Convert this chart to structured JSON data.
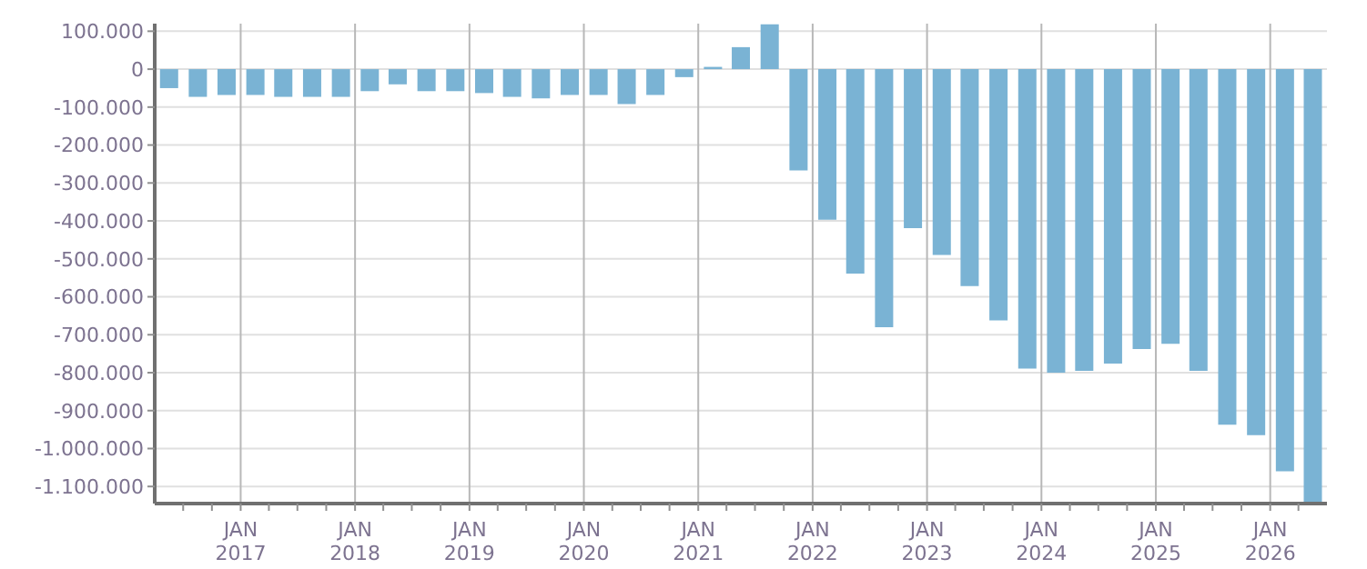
{
  "chart_data": {
    "type": "bar",
    "color": "#7ab3d4",
    "x": [
      "2016-05-15",
      "2016-08-15",
      "2016-11-15",
      "2017-02-15",
      "2017-05-15",
      "2017-08-15",
      "2017-11-15",
      "2018-02-15",
      "2018-05-15",
      "2018-08-15",
      "2018-11-15",
      "2019-02-15",
      "2019-05-15",
      "2019-08-15",
      "2019-11-15",
      "2020-02-15",
      "2020-05-15",
      "2020-08-15",
      "2020-11-15",
      "2021-02-15",
      "2021-05-15",
      "2021-08-15",
      "2021-11-15",
      "2022-02-15",
      "2022-05-15",
      "2022-08-15",
      "2022-11-15",
      "2023-02-15",
      "2023-05-15",
      "2023-08-15",
      "2023-11-15",
      "2024-02-15",
      "2024-05-15",
      "2024-08-15",
      "2024-11-15",
      "2025-02-15",
      "2025-05-15",
      "2025-08-15",
      "2025-11-15",
      "2026-02-15",
      "2026-05-15"
    ],
    "values": [
      -50000,
      -73000,
      -68000,
      -68000,
      -73000,
      -73000,
      -73000,
      -58000,
      -40000,
      -58000,
      -58000,
      -63000,
      -73000,
      -77000,
      -68000,
      -68000,
      -92000,
      -68000,
      -21000,
      6000,
      58000,
      118000,
      -267000,
      -397000,
      -539000,
      -680000,
      -419000,
      -490000,
      -572000,
      -662000,
      -789000,
      -800000,
      -795000,
      -776000,
      -738000,
      -724000,
      -795000,
      -937000,
      -965000,
      -1060000,
      -1145000
    ],
    "xlim": [
      "2016-04",
      "2026-07"
    ],
    "xticks": [
      {
        "value": "2016-07",
        "label": null
      },
      {
        "value": "2016-10",
        "label": null
      },
      {
        "value": "2017-01",
        "label": "JAN\n2017"
      },
      {
        "value": "2017-04",
        "label": null
      },
      {
        "value": "2017-07",
        "label": null
      },
      {
        "value": "2017-10",
        "label": null
      },
      {
        "value": "2018-01",
        "label": "JAN\n2018"
      },
      {
        "value": "2018-04",
        "label": null
      },
      {
        "value": "2018-07",
        "label": null
      },
      {
        "value": "2018-10",
        "label": null
      },
      {
        "value": "2019-01",
        "label": "JAN\n2019"
      },
      {
        "value": "2019-04",
        "label": null
      },
      {
        "value": "2019-07",
        "label": null
      },
      {
        "value": "2019-10",
        "label": null
      },
      {
        "value": "2020-01",
        "label": "JAN\n2020"
      },
      {
        "value": "2020-04",
        "label": null
      },
      {
        "value": "2020-07",
        "label": null
      },
      {
        "value": "2020-10",
        "label": null
      },
      {
        "value": "2021-01",
        "label": "JAN\n2021"
      },
      {
        "value": "2021-04",
        "label": null
      },
      {
        "value": "2021-07",
        "label": null
      },
      {
        "value": "2021-10",
        "label": null
      },
      {
        "value": "2022-01",
        "label": "JAN\n2022"
      },
      {
        "value": "2022-04",
        "label": null
      },
      {
        "value": "2022-07",
        "label": null
      },
      {
        "value": "2022-10",
        "label": null
      },
      {
        "value": "2023-01",
        "label": "JAN\n2023"
      },
      {
        "value": "2023-04",
        "label": null
      },
      {
        "value": "2023-07",
        "label": null
      },
      {
        "value": "2023-10",
        "label": null
      },
      {
        "value": "2024-01",
        "label": "JAN\n2024"
      },
      {
        "value": "2024-04",
        "label": null
      },
      {
        "value": "2024-07",
        "label": null
      },
      {
        "value": "2024-10",
        "label": null
      },
      {
        "value": "2025-01",
        "label": "JAN\n2025"
      },
      {
        "value": "2025-04",
        "label": null
      },
      {
        "value": "2025-07",
        "label": null
      },
      {
        "value": "2025-10",
        "label": null
      },
      {
        "value": "2026-01",
        "label": "JAN\n2026"
      },
      {
        "value": "2026-04",
        "label": null
      }
    ],
    "ylim": [
      -1145000,
      120000
    ],
    "yticks": [
      {
        "value": 100000,
        "label": "100.000"
      },
      {
        "value": 0,
        "label": "0"
      },
      {
        "value": -100000,
        "label": "-100.000"
      },
      {
        "value": -200000,
        "label": "-200.000"
      },
      {
        "value": -300000,
        "label": "-300.000"
      },
      {
        "value": -400000,
        "label": "-400.000"
      },
      {
        "value": -500000,
        "label": "-500.000"
      },
      {
        "value": -600000,
        "label": "-600.000"
      },
      {
        "value": -700000,
        "label": "-700.000"
      },
      {
        "value": -800000,
        "label": "-800.000"
      },
      {
        "value": -900000,
        "label": "-900.000"
      },
      {
        "value": -1000000,
        "label": "-1.000.000"
      },
      {
        "value": -1100000,
        "label": "-1.100.000"
      }
    ],
    "grid": true,
    "legend": false
  }
}
